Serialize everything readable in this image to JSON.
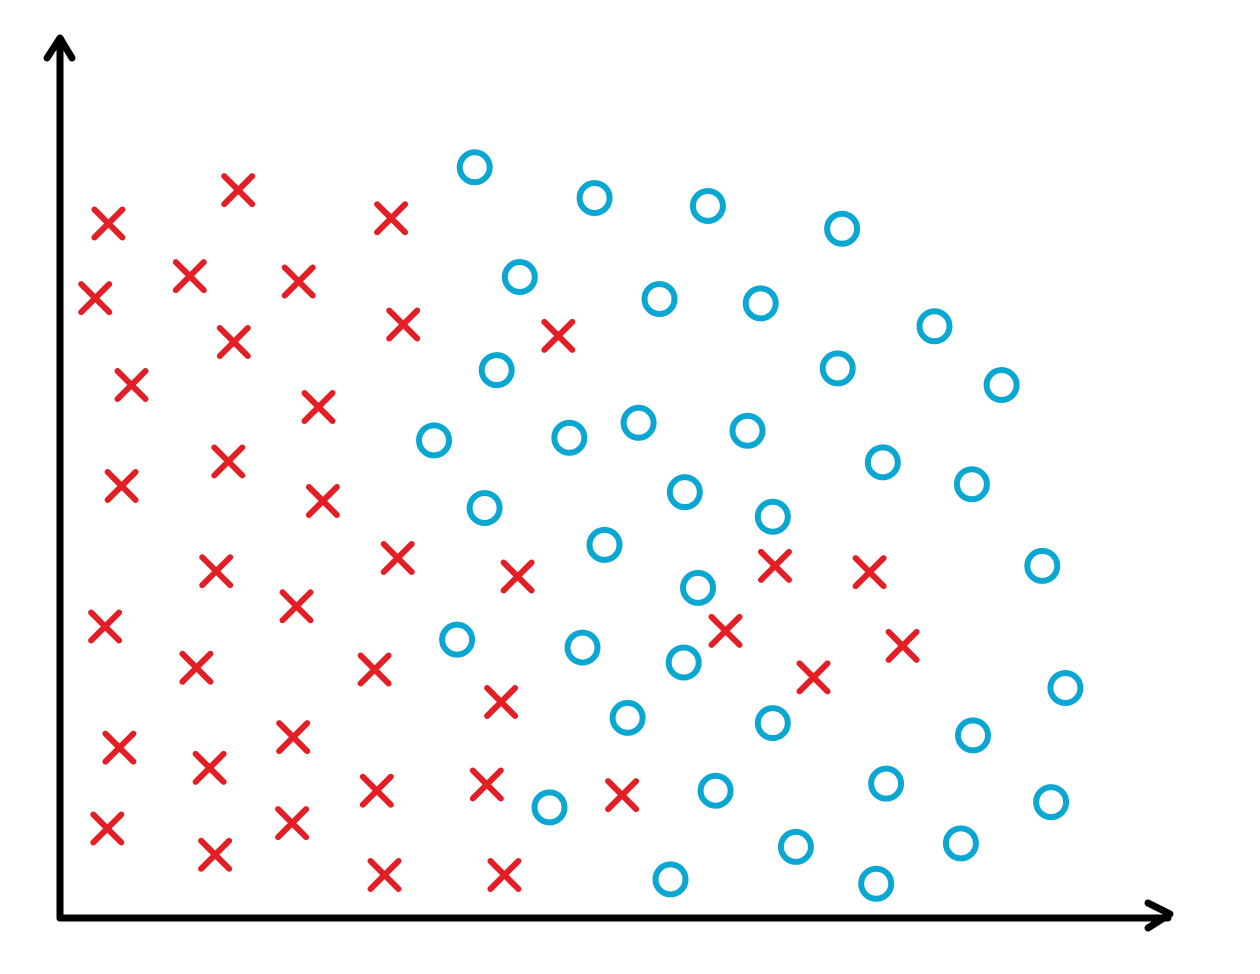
{
  "chart_data": {
    "type": "scatter",
    "title": "",
    "xlabel": "",
    "ylabel": "",
    "grid": false,
    "legend": "none",
    "xlim": [
      0,
      100
    ],
    "ylim": [
      0,
      100
    ],
    "series": [
      {
        "marker": "x",
        "color": "#e31e24",
        "points": [
          [
            4.4,
            79.1
          ],
          [
            16.2,
            82.9
          ],
          [
            30.1,
            79.7
          ],
          [
            11.8,
            73.1
          ],
          [
            21.7,
            72.5
          ],
          [
            3.2,
            70.6
          ],
          [
            15.8,
            65.6
          ],
          [
            31.2,
            67.6
          ],
          [
            6.5,
            60.7
          ],
          [
            23.5,
            58.2
          ],
          [
            45.3,
            66.3
          ],
          [
            5.6,
            49.2
          ],
          [
            15.3,
            52.0
          ],
          [
            23.9,
            47.5
          ],
          [
            14.2,
            39.5
          ],
          [
            30.7,
            41.0
          ],
          [
            41.6,
            38.9
          ],
          [
            21.5,
            35.5
          ],
          [
            4.1,
            33.2
          ],
          [
            12.4,
            28.5
          ],
          [
            28.6,
            28.3
          ],
          [
            40.1,
            24.6
          ],
          [
            65.0,
            40.1
          ],
          [
            73.6,
            39.4
          ],
          [
            76.6,
            31.0
          ],
          [
            60.5,
            32.7
          ],
          [
            68.5,
            27.4
          ],
          [
            5.4,
            19.4
          ],
          [
            13.6,
            17.1
          ],
          [
            21.2,
            20.6
          ],
          [
            28.8,
            14.5
          ],
          [
            38.8,
            15.2
          ],
          [
            51.1,
            14.0
          ],
          [
            4.3,
            10.2
          ],
          [
            14.1,
            7.2
          ],
          [
            21.1,
            10.8
          ],
          [
            29.5,
            4.9
          ],
          [
            40.4,
            4.9
          ]
        ]
      },
      {
        "marker": "o",
        "color": "#0aa7d2",
        "points": [
          [
            37.7,
            85.5
          ],
          [
            48.6,
            82.0
          ],
          [
            58.9,
            81.1
          ],
          [
            71.1,
            78.5
          ],
          [
            41.8,
            73.0
          ],
          [
            54.5,
            70.5
          ],
          [
            63.7,
            70.0
          ],
          [
            79.5,
            67.4
          ],
          [
            39.7,
            62.4
          ],
          [
            70.7,
            62.6
          ],
          [
            85.6,
            60.7
          ],
          [
            52.6,
            56.4
          ],
          [
            34.0,
            54.4
          ],
          [
            46.3,
            54.7
          ],
          [
            62.5,
            55.5
          ],
          [
            74.8,
            51.9
          ],
          [
            82.9,
            49.4
          ],
          [
            56.8,
            48.5
          ],
          [
            38.6,
            46.7
          ],
          [
            64.8,
            45.7
          ],
          [
            49.5,
            42.5
          ],
          [
            58.0,
            37.6
          ],
          [
            89.3,
            40.1
          ],
          [
            36.1,
            31.7
          ],
          [
            47.5,
            30.8
          ],
          [
            56.7,
            29.1
          ],
          [
            91.4,
            26.2
          ],
          [
            51.6,
            22.8
          ],
          [
            64.8,
            22.2
          ],
          [
            83.0,
            20.8
          ],
          [
            44.5,
            12.6
          ],
          [
            59.6,
            14.5
          ],
          [
            75.1,
            15.3
          ],
          [
            90.1,
            13.2
          ],
          [
            66.9,
            8.1
          ],
          [
            81.9,
            8.5
          ],
          [
            55.5,
            4.4
          ],
          [
            74.2,
            3.9
          ]
        ]
      }
    ]
  }
}
